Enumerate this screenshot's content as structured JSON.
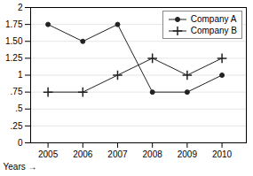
{
  "chart_data": {
    "type": "line",
    "xlabel": "Years →",
    "x": [
      2005,
      2006,
      2007,
      2008,
      2009,
      2010
    ],
    "series": [
      {
        "name": "Company A",
        "color": "#222222",
        "marker": "circle",
        "values": [
          1.75,
          1.5,
          1.75,
          0.75,
          0.75,
          1.0
        ]
      },
      {
        "name": "Company B",
        "color": "#222222",
        "marker": "plus",
        "values": [
          0.75,
          0.75,
          1.0,
          1.25,
          1.0,
          1.25
        ]
      }
    ],
    "xlim": [
      2004.5,
      2010.7
    ],
    "xticks": [
      2005,
      2006,
      2007,
      2008,
      2009,
      2010
    ],
    "ylim": [
      0,
      2
    ],
    "yticks": [
      0,
      {
        "value": 0.25,
        "label": ".25"
      },
      {
        "value": 0.5,
        "label": ".5"
      },
      {
        "value": 0.75,
        "label": ".75"
      },
      1,
      1.25,
      {
        "value": 1.5,
        "label": "1.50"
      },
      1.75,
      2
    ],
    "grid": true,
    "legend": "upper right"
  }
}
